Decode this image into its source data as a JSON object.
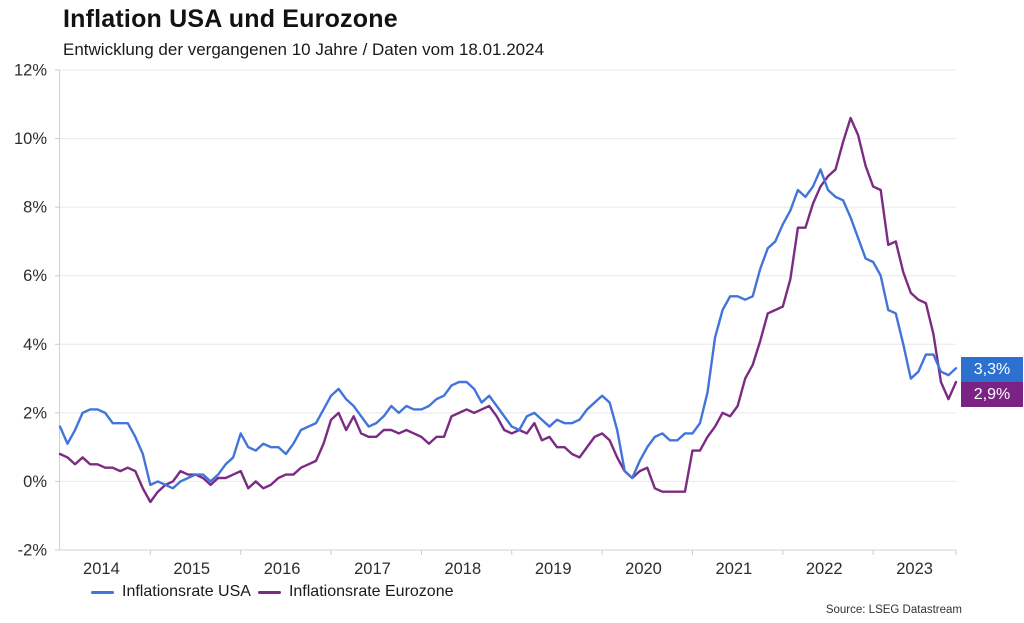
{
  "header": {
    "title": "Inflation USA und Eurozone",
    "subtitle": "Entwicklung der vergangenen 10 Jahre / Daten vom 18.01.2024"
  },
  "footer": {
    "source": "Source: LSEG Datastream"
  },
  "chart_data": {
    "type": "line",
    "title": "Inflation USA und Eurozone",
    "subtitle": "Entwicklung der vergangenen 10 Jahre / Daten vom 18.01.2024",
    "x_start": "2014-01",
    "x_end": "2023-12",
    "points_per_month": 1,
    "xtick_labels": [
      "2014",
      "2015",
      "2016",
      "2017",
      "2018",
      "2019",
      "2020",
      "2021",
      "2022",
      "2023"
    ],
    "ytick_values": [
      12,
      10,
      8,
      6,
      4,
      2,
      0,
      -2
    ],
    "ytick_labels": [
      "12%",
      "10%",
      "8%",
      "6%",
      "4%",
      "2%",
      "0%",
      "-2%"
    ],
    "ylim": [
      -2,
      12
    ],
    "grid": "horizontal",
    "legend_position": "bottom-left",
    "series": [
      {
        "name": "Inflationsrate USA",
        "color": "#4274d9",
        "label_bg": "#2c70d0",
        "end_label": "3,3%",
        "values": [
          1.6,
          1.1,
          1.5,
          2.0,
          2.1,
          2.1,
          2.0,
          1.7,
          1.7,
          1.7,
          1.3,
          0.8,
          -0.1,
          0.0,
          -0.1,
          -0.2,
          0.0,
          0.1,
          0.2,
          0.2,
          0.0,
          0.2,
          0.5,
          0.7,
          1.4,
          1.0,
          0.9,
          1.1,
          1.0,
          1.0,
          0.8,
          1.1,
          1.5,
          1.6,
          1.7,
          2.1,
          2.5,
          2.7,
          2.4,
          2.2,
          1.9,
          1.6,
          1.7,
          1.9,
          2.2,
          2.0,
          2.2,
          2.1,
          2.1,
          2.2,
          2.4,
          2.5,
          2.8,
          2.9,
          2.9,
          2.7,
          2.3,
          2.5,
          2.2,
          1.9,
          1.6,
          1.5,
          1.9,
          2.0,
          1.8,
          1.6,
          1.8,
          1.7,
          1.7,
          1.8,
          2.1,
          2.3,
          2.5,
          2.3,
          1.5,
          0.3,
          0.1,
          0.6,
          1.0,
          1.3,
          1.4,
          1.2,
          1.2,
          1.4,
          1.4,
          1.7,
          2.6,
          4.2,
          5.0,
          5.4,
          5.4,
          5.3,
          5.4,
          6.2,
          6.8,
          7.0,
          7.5,
          7.9,
          8.5,
          8.3,
          8.6,
          9.1,
          8.5,
          8.3,
          8.2,
          7.7,
          7.1,
          6.5,
          6.4,
          6.0,
          5.0,
          4.9,
          4.0,
          3.0,
          3.2,
          3.7,
          3.7,
          3.2,
          3.1,
          3.3
        ]
      },
      {
        "name": "Inflationsrate Eurozone",
        "color": "#7c2b84",
        "label_bg": "#7b2384",
        "end_label": "2,9%",
        "values": [
          0.8,
          0.7,
          0.5,
          0.7,
          0.5,
          0.5,
          0.4,
          0.4,
          0.3,
          0.4,
          0.3,
          -0.2,
          -0.6,
          -0.3,
          -0.1,
          0.0,
          0.3,
          0.2,
          0.2,
          0.1,
          -0.1,
          0.1,
          0.1,
          0.2,
          0.3,
          -0.2,
          0.0,
          -0.2,
          -0.1,
          0.1,
          0.2,
          0.2,
          0.4,
          0.5,
          0.6,
          1.1,
          1.8,
          2.0,
          1.5,
          1.9,
          1.4,
          1.3,
          1.3,
          1.5,
          1.5,
          1.4,
          1.5,
          1.4,
          1.3,
          1.1,
          1.3,
          1.3,
          1.9,
          2.0,
          2.1,
          2.0,
          2.1,
          2.2,
          1.9,
          1.5,
          1.4,
          1.5,
          1.4,
          1.7,
          1.2,
          1.3,
          1.0,
          1.0,
          0.8,
          0.7,
          1.0,
          1.3,
          1.4,
          1.2,
          0.7,
          0.3,
          0.1,
          0.3,
          0.4,
          -0.2,
          -0.3,
          -0.3,
          -0.3,
          -0.3,
          0.9,
          0.9,
          1.3,
          1.6,
          2.0,
          1.9,
          2.2,
          3.0,
          3.4,
          4.1,
          4.9,
          5.0,
          5.1,
          5.9,
          7.4,
          7.4,
          8.1,
          8.6,
          8.9,
          9.1,
          9.9,
          10.6,
          10.1,
          9.2,
          8.6,
          8.5,
          6.9,
          7.0,
          6.1,
          5.5,
          5.3,
          5.2,
          4.3,
          2.9,
          2.4,
          2.9
        ]
      }
    ]
  }
}
